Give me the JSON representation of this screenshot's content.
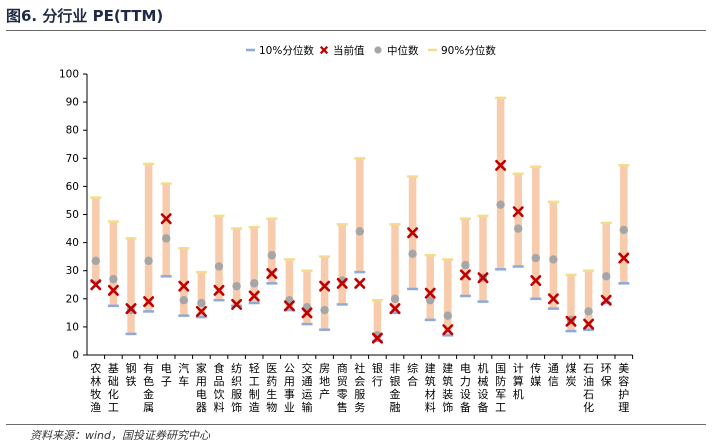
{
  "figure": {
    "title": "图6. 分行业 PE(TTM)",
    "source": "资料来源：wind，国投证券研究中心"
  },
  "colors": {
    "p10": "#8eaadb",
    "current": "#c00000",
    "median": "#a6a6a6",
    "p90": "#f4dc8e",
    "range": "#f8cbad",
    "axis": "#000000"
  },
  "chart_data": {
    "type": "range",
    "title": "",
    "xlabel": "",
    "ylabel": "",
    "ylim": [
      0,
      100
    ],
    "yticks": [
      0,
      10,
      20,
      30,
      40,
      50,
      60,
      70,
      80,
      90,
      100
    ],
    "grid": false,
    "legend_position": "top",
    "categories": [
      "农林牧渔",
      "基础化工",
      "钢铁",
      "有色金属",
      "电子",
      "汽车",
      "家用电器",
      "食品饮料",
      "纺织服饰",
      "轻工制造",
      "医药生物",
      "公用事业",
      "交通运输",
      "房地产",
      "商贸零售",
      "社会服务",
      "银行",
      "非银金融",
      "综合",
      "建筑材料",
      "建筑装饰",
      "电力设备",
      "机械设备",
      "国防军工",
      "计算机",
      "传媒",
      "通信",
      "煤炭",
      "石油石化",
      "环保",
      "美容护理"
    ],
    "series": [
      {
        "name": "10%分位数",
        "marker": "dash",
        "values": [
          26,
          17.5,
          7.5,
          15.5,
          28,
          14,
          13.5,
          19.5,
          17.5,
          18.5,
          25.5,
          16,
          11,
          9,
          18,
          29.5,
          5,
          15,
          23.5,
          12.5,
          7,
          21,
          19,
          30.5,
          31.5,
          20,
          16.5,
          8.5,
          9,
          18.5,
          25.5
        ]
      },
      {
        "name": "当前值",
        "marker": "x",
        "values": [
          25,
          23,
          16.5,
          19,
          48.5,
          24.5,
          15.5,
          23,
          18,
          21,
          29,
          17.5,
          15,
          24.5,
          25.5,
          25.5,
          6,
          16.5,
          43.5,
          22,
          9,
          28.5,
          27.5,
          67.5,
          51,
          26.5,
          20,
          12,
          11,
          19.5,
          34.5
        ]
      },
      {
        "name": "中位数",
        "marker": "dot",
        "values": [
          33.5,
          27,
          16,
          33.5,
          41.5,
          19.5,
          18.5,
          31.5,
          24.5,
          25.5,
          35.5,
          19.5,
          17,
          16,
          26.5,
          44,
          7,
          20,
          36,
          19.5,
          14,
          32,
          27.5,
          53.5,
          45,
          34.5,
          34,
          12.5,
          15.5,
          28,
          44.5
        ]
      },
      {
        "name": "90%分位数",
        "marker": "dash",
        "values": [
          56,
          47.5,
          41.5,
          68,
          61,
          38,
          29.5,
          49.5,
          45,
          45.5,
          48.5,
          34,
          30,
          35,
          46.5,
          70,
          19.5,
          46.5,
          63.5,
          35.5,
          34,
          48.5,
          49.5,
          91.5,
          64.5,
          67,
          54.5,
          28.5,
          30,
          47,
          67.5
        ]
      }
    ]
  }
}
